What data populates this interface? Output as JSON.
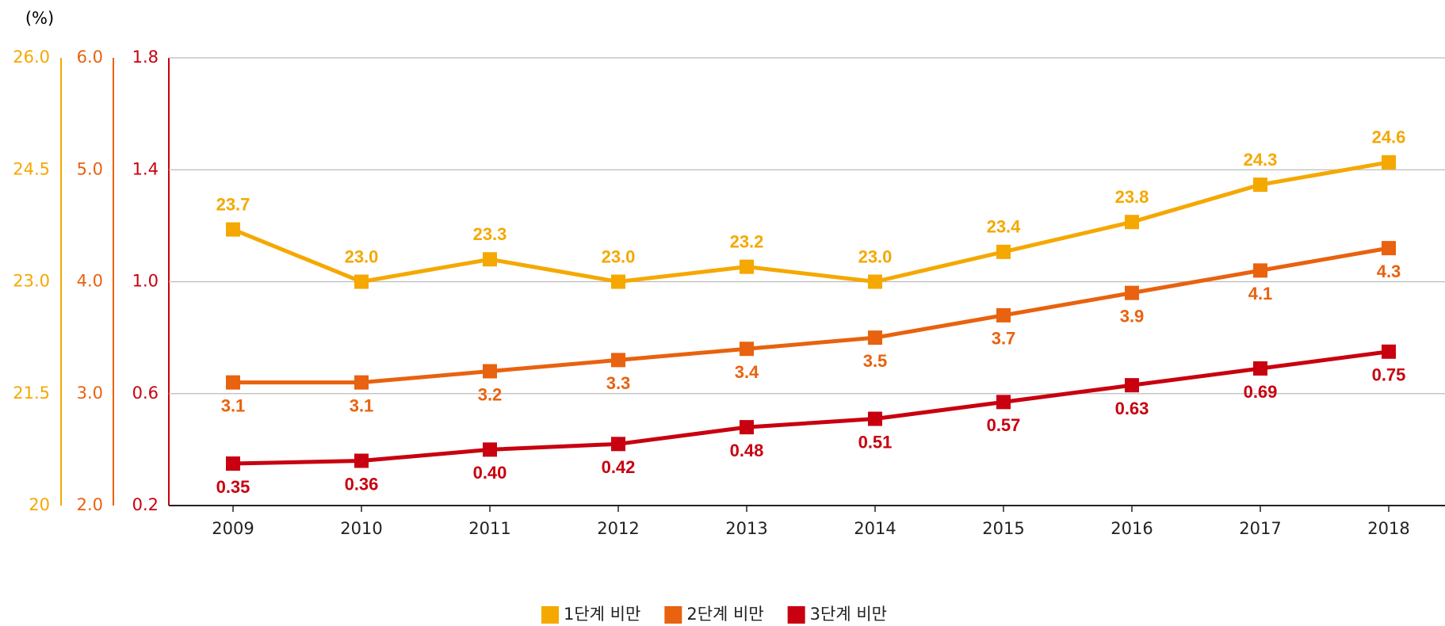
{
  "chart_data": {
    "type": "line",
    "unit": "(%)",
    "categories": [
      "2009",
      "2010",
      "2011",
      "2012",
      "2013",
      "2014",
      "2015",
      "2016",
      "2017",
      "2018"
    ],
    "ylim": [
      0.2,
      1.8
    ],
    "yticks": [
      0.2,
      0.6,
      {
        "value": 1.0,
        "label": "1.0"
      },
      1.4,
      1.8
    ],
    "y2lim": [
      2,
      6
    ],
    "y2ticks": [
      {
        "value": 2,
        "label": "2.0"
      },
      {
        "value": 3,
        "label": "3.0"
      },
      {
        "value": 4,
        "label": "4.0"
      },
      {
        "value": 5,
        "label": "5.0"
      },
      {
        "value": 6,
        "label": "6.0"
      }
    ],
    "y3lim": [
      20,
      26
    ],
    "y3ticks": [
      20,
      21.5,
      {
        "value": 23,
        "label": "23.0"
      },
      24.5,
      {
        "value": 26,
        "label": "26.0"
      }
    ],
    "grid": true,
    "legend": "bottom",
    "series": [
      {
        "name": "1단계 비만",
        "color": "#f5a800",
        "axis": "y3",
        "values": [
          23.7,
          23.0,
          23.3,
          23.0,
          23.2,
          23.0,
          23.4,
          23.8,
          24.3,
          24.6
        ],
        "value_labels": [
          "23.7",
          "23.0",
          "23.3",
          "23.0",
          "23.2",
          "23.0",
          "23.4",
          "23.8",
          "24.3",
          "24.6"
        ]
      },
      {
        "name": "2단계 비만",
        "color": "#e8620f",
        "axis": "y2",
        "values": [
          3.1,
          3.1,
          3.2,
          3.3,
          3.4,
          3.5,
          3.7,
          3.9,
          4.1,
          4.3
        ],
        "value_labels": [
          "3.1",
          "3.1",
          "3.2",
          "3.3",
          "3.4",
          "3.5",
          "3.7",
          "3.9",
          "4.1",
          "4.3"
        ]
      },
      {
        "name": "3단계 비만",
        "color": "#c8000f",
        "values": [
          0.35,
          0.36,
          0.4,
          0.42,
          0.48,
          0.51,
          0.57,
          0.63,
          0.69,
          0.75
        ],
        "value_labels": [
          "0.35",
          "0.36",
          "0.40",
          "0.42",
          "0.48",
          "0.51",
          "0.57",
          "0.63",
          "0.69",
          "0.75"
        ]
      }
    ]
  }
}
